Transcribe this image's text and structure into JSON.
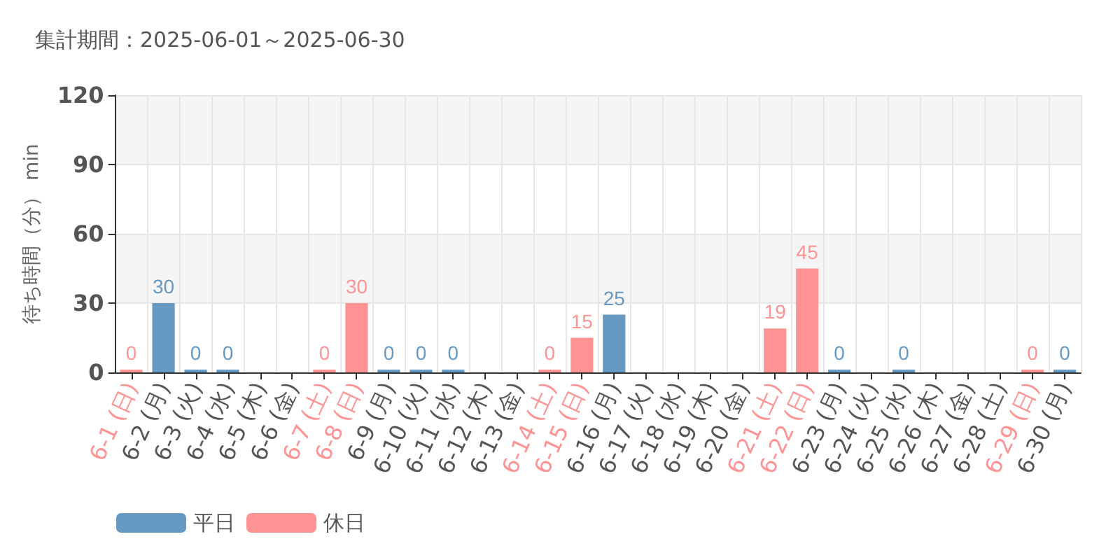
{
  "chart_data": {
    "type": "bar",
    "title": "集計期間：2025-06-01～2025-06-30",
    "ylabel": "待ち時間（分） min",
    "categories": [
      "6-1 (日)",
      "6-2 (月)",
      "6-3 (火)",
      "6-4 (水)",
      "6-5 (木)",
      "6-6 (金)",
      "6-7 (土)",
      "6-8 (日)",
      "6-9 (月)",
      "6-10 (火)",
      "6-11 (水)",
      "6-12 (木)",
      "6-13 (金)",
      "6-14 (土)",
      "6-15 (日)",
      "6-16 (月)",
      "6-17 (火)",
      "6-18 (水)",
      "6-19 (木)",
      "6-20 (金)",
      "6-21 (土)",
      "6-22 (日)",
      "6-23 (月)",
      "6-24 (火)",
      "6-25 (水)",
      "6-26 (木)",
      "6-27 (金)",
      "6-28 (土)",
      "6-29 (日)",
      "6-30 (月)"
    ],
    "series": [
      {
        "name": "平日",
        "color": "#6699c2",
        "values": [
          null,
          30,
          0,
          0,
          null,
          null,
          null,
          null,
          0,
          0,
          0,
          null,
          null,
          null,
          null,
          25,
          null,
          null,
          null,
          null,
          null,
          null,
          0,
          null,
          0,
          null,
          null,
          null,
          null,
          0
        ]
      },
      {
        "name": "休日",
        "color": "#ff9393",
        "values": [
          0,
          null,
          null,
          null,
          null,
          null,
          0,
          30,
          null,
          null,
          null,
          null,
          null,
          0,
          15,
          null,
          null,
          null,
          null,
          null,
          19,
          45,
          null,
          null,
          null,
          null,
          null,
          null,
          0,
          null
        ]
      }
    ],
    "ylim": [
      0,
      120
    ],
    "yticks": [
      0,
      30,
      60,
      90,
      120
    ],
    "grid": true,
    "legend": "bottom left",
    "data_labels": true
  }
}
